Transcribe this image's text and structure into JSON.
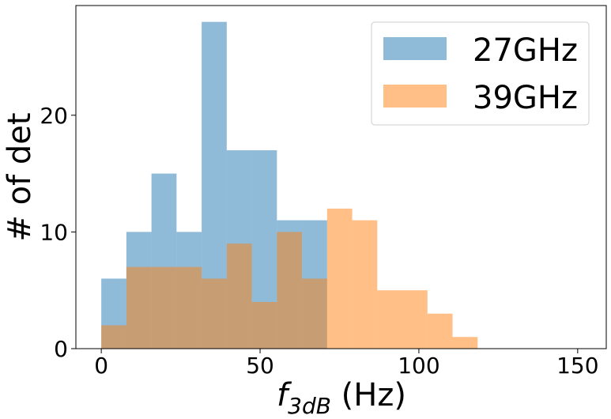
{
  "chart_data": {
    "type": "histogram",
    "xlabel": "$f_{3dB}$ (Hz)",
    "xlabel_main": "f",
    "xlabel_sub": "3dB",
    "xlabel_unit": " (Hz)",
    "ylabel": "# of det",
    "xlim": [
      -8,
      159
    ],
    "ylim": [
      0,
      29.4
    ],
    "xticks": [
      0,
      50,
      100,
      150
    ],
    "yticks": [
      0,
      10,
      20
    ],
    "bin_edges": [
      0,
      7.9,
      15.8,
      23.7,
      31.6,
      39.5,
      47.4,
      55.3,
      63.2,
      71.1,
      79.0,
      86.9,
      94.8,
      102.7,
      110.6,
      118.5,
      126.4,
      134.3,
      142.2,
      150.1
    ],
    "series": [
      {
        "name": "27GHz",
        "color": "#1f77b4",
        "alpha": 0.5,
        "counts": [
          6,
          10,
          15,
          10,
          28,
          17,
          17,
          11,
          11,
          0,
          0,
          0,
          0,
          0,
          0,
          0,
          0,
          0,
          0
        ]
      },
      {
        "name": "39GHz",
        "color": "#ff7f0e",
        "alpha": 0.5,
        "counts": [
          2,
          7,
          7,
          7,
          6,
          9,
          4,
          10,
          6,
          12,
          11,
          5,
          5,
          3,
          1,
          0,
          0,
          0,
          0
        ]
      }
    ],
    "legend_position": "top-right",
    "grid": false
  }
}
